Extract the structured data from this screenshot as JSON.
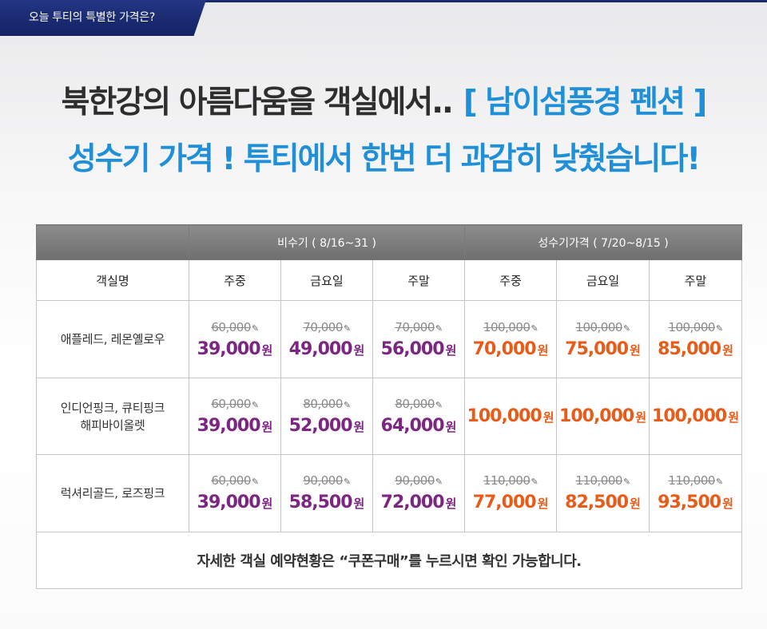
{
  "top_tag": "오늘 투티의 특별한 가격은?",
  "headline1": "북한강의 아름다움을 객실에서..",
  "headline1_accent": "[ 남이섬풍경 펜션 ]",
  "headline2": "성수기 가격 ! 투티에서 한번 더 과감히 낮췄습니다!",
  "colors": {
    "navy": "#1b2a6b",
    "accent_blue": "#1f8fd8",
    "purple": "#7c2583",
    "orange": "#e85c19"
  },
  "table": {
    "group_headers": {
      "offpeak": "비수기 ( 8/16~31 )",
      "peak": "성수기가격 ( 7/20~8/15 )"
    },
    "columns": {
      "room": "객실명",
      "off_weekday": "주중",
      "off_friday": "금요일",
      "off_weekend": "주말",
      "peak_weekday": "주중",
      "peak_friday": "금요일",
      "peak_weekend": "주말"
    },
    "won": "원",
    "rows": [
      {
        "name_line1": "애플레드, 레몬옐로우",
        "name_line2": "",
        "prices": [
          {
            "old": "60,000",
            "new": "39,000"
          },
          {
            "old": "70,000",
            "new": "49,000"
          },
          {
            "old": "70,000",
            "new": "56,000"
          },
          {
            "old": "100,000",
            "new": "70,000"
          },
          {
            "old": "100,000",
            "new": "75,000"
          },
          {
            "old": "100,000",
            "new": "85,000"
          }
        ]
      },
      {
        "name_line1": "인디언핑크, 큐티핑크",
        "name_line2": "해피바이올렛",
        "prices": [
          {
            "old": "60,000",
            "new": "39,000"
          },
          {
            "old": "80,000",
            "new": "52,000"
          },
          {
            "old": "80,000",
            "new": "64,000"
          },
          {
            "old": "",
            "new": "100,000"
          },
          {
            "old": "",
            "new": "100,000"
          },
          {
            "old": "",
            "new": "100,000"
          }
        ]
      },
      {
        "name_line1": "럭셔리골드, 로즈핑크",
        "name_line2": "",
        "prices": [
          {
            "old": "60,000",
            "new": "39,000"
          },
          {
            "old": "90,000",
            "new": "58,500"
          },
          {
            "old": "90,000",
            "new": "72,000"
          },
          {
            "old": "110,000",
            "new": "77,000"
          },
          {
            "old": "110,000",
            "new": "82,500"
          },
          {
            "old": "110,000",
            "new": "93,500"
          }
        ]
      }
    ],
    "note": "자세한 객실 예약현황은 “쿠폰구매”를 누르시면 확인 가능합니다."
  }
}
